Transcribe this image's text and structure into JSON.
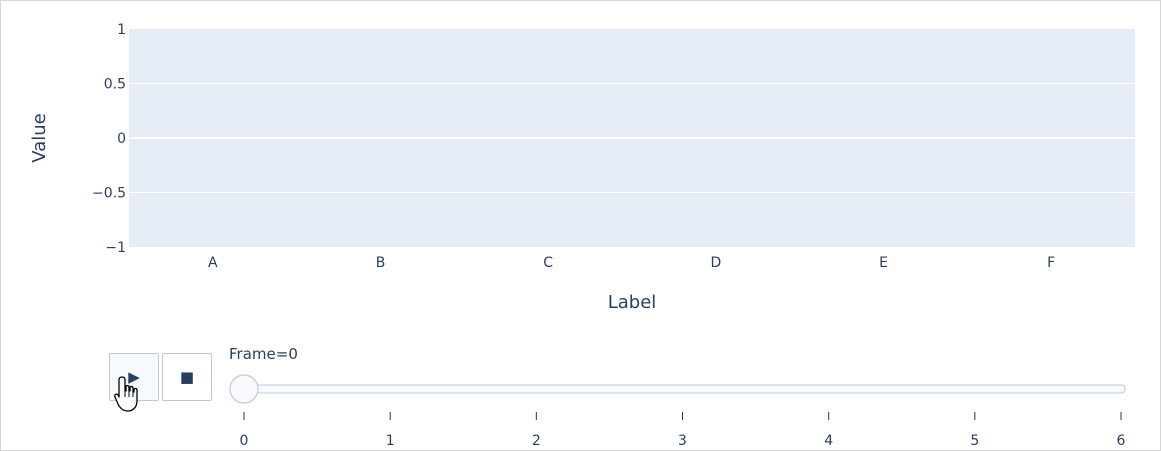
{
  "chart_data": {
    "type": "bar",
    "categories": [
      "A",
      "B",
      "C",
      "D",
      "E",
      "F"
    ],
    "values": [
      0,
      0,
      0,
      0,
      0,
      0
    ],
    "xlabel": "Label",
    "ylabel": "Value",
    "ylim": [
      -1,
      1
    ],
    "yticks": [
      1,
      0.5,
      0,
      -0.5,
      -1
    ],
    "ytick_labels": [
      "1",
      "0.5",
      "0",
      "−0.5",
      "−1"
    ],
    "grid": true,
    "colors": {
      "plot_bg": "#e5ecf6",
      "grid": "#ffffff",
      "text": "#2a3f5f"
    }
  },
  "animation": {
    "play_label": "▶",
    "stop_label": "■",
    "slider_prefix": "Frame=",
    "current_frame": "0",
    "frames": [
      "0",
      "1",
      "2",
      "3",
      "4",
      "5",
      "6"
    ]
  }
}
